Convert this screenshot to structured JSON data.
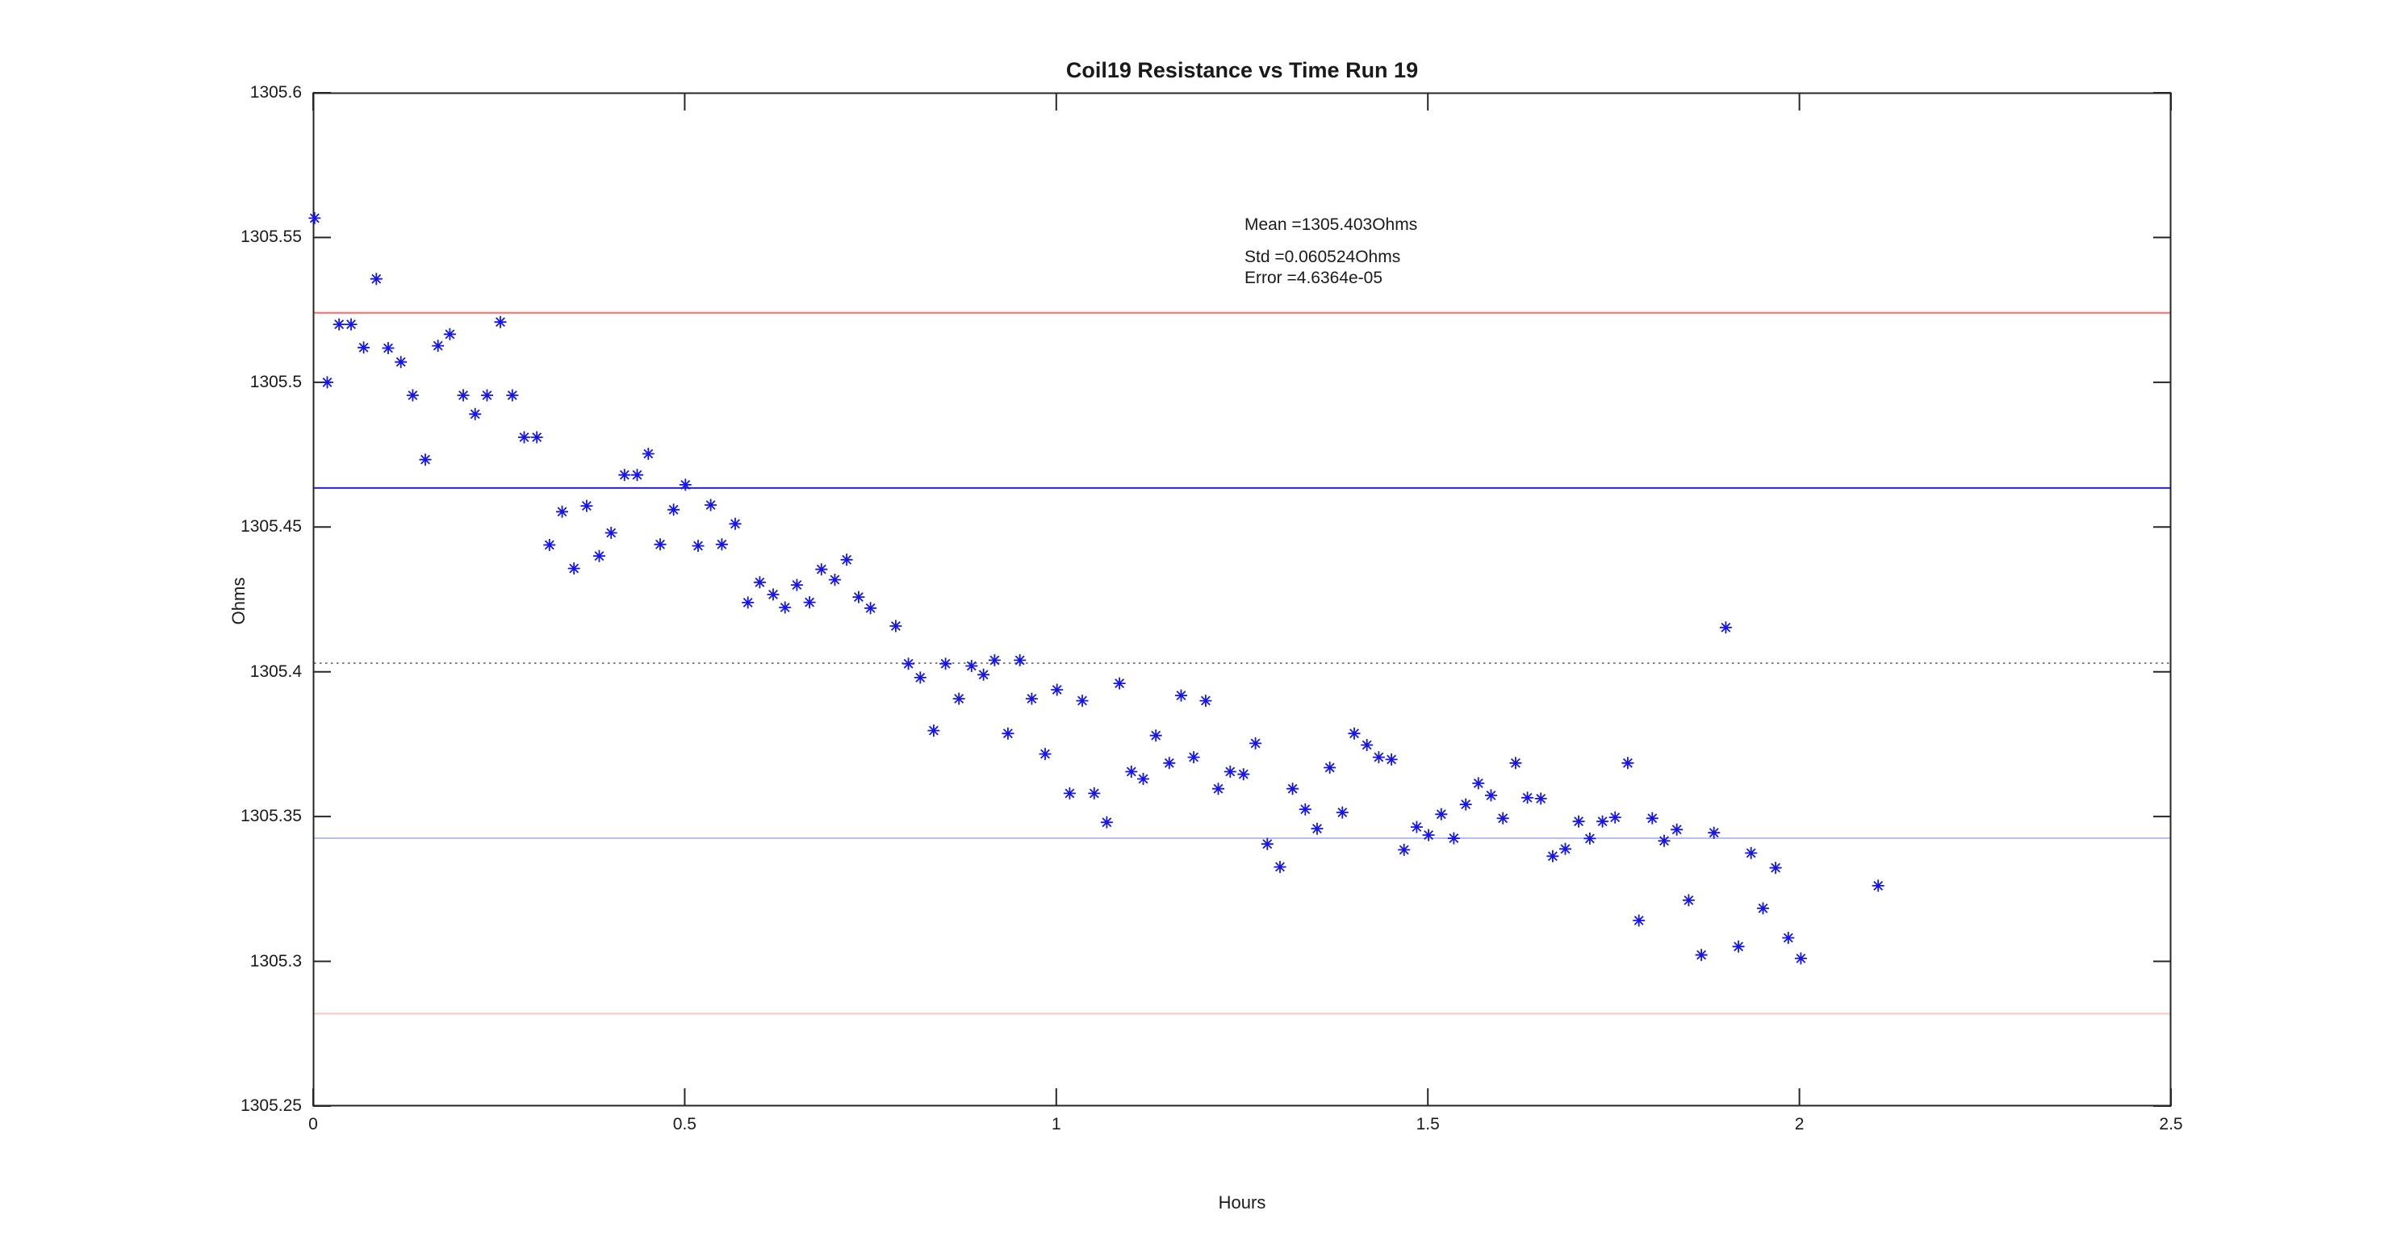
{
  "figure": {
    "background": "#ffffff",
    "axis_color": "#262626",
    "tick_length": 22
  },
  "chart_data": {
    "type": "scatter",
    "title": "Coil19 Resistance vs Time Run 19",
    "xlabel": "Hours",
    "ylabel": "Ohms",
    "xlim": [
      0,
      2.5
    ],
    "ylim": [
      1305.25,
      1305.6
    ],
    "grid": false,
    "legend": "none",
    "x_ticks": [
      0,
      0.5,
      1,
      1.5,
      2,
      2.5
    ],
    "x_tick_labels": [
      "0",
      "0.5",
      "1",
      "1.5",
      "2",
      "2.5"
    ],
    "y_ticks": [
      1305.25,
      1305.3,
      1305.35,
      1305.4,
      1305.45,
      1305.5,
      1305.55,
      1305.6
    ],
    "y_tick_labels": [
      "1305.25",
      "1305.3",
      "1305.35",
      "1305.4",
      "1305.45",
      "1305.5",
      "1305.55",
      "1305.6"
    ],
    "marker": {
      "shape": "asterisk",
      "color": "#1414f0",
      "size": 15
    },
    "stats": {
      "mean": 1305.403,
      "std": 0.060524,
      "error": 4.6364e-05
    },
    "annotation": {
      "mean": "Mean =1305.403Ohms",
      "std": "Std =0.060524Ohms",
      "error": "Error =4.6364e-05"
    },
    "reference_lines": [
      {
        "name": "mean_plus_2std",
        "value": 1305.524,
        "color": "#ff6a6a",
        "style": "solid"
      },
      {
        "name": "mean_plus_std",
        "value": 1305.4635,
        "color": "#2222dc",
        "style": "solid"
      },
      {
        "name": "mean",
        "value": 1305.403,
        "color": "#7f7f7f",
        "style": "dotted"
      },
      {
        "name": "mean_minus_std",
        "value": 1305.3425,
        "color": "#b6bdf2",
        "style": "solid"
      },
      {
        "name": "mean_minus_2std",
        "value": 1305.2819,
        "color": "#ffc2c2",
        "style": "solid"
      }
    ],
    "series": [
      {
        "name": "Coil19 resistance",
        "points": [
          [
            0.002,
            1305.5567
          ],
          [
            0.019,
            1305.5
          ],
          [
            0.035,
            1305.52
          ],
          [
            0.051,
            1305.52
          ],
          [
            0.068,
            1305.512
          ],
          [
            0.085,
            1305.5357
          ],
          [
            0.101,
            1305.5118
          ],
          [
            0.118,
            1305.507
          ],
          [
            0.134,
            1305.4955
          ],
          [
            0.151,
            1305.4733
          ],
          [
            0.168,
            1305.5126
          ],
          [
            0.184,
            1305.5166
          ],
          [
            0.202,
            1305.4955
          ],
          [
            0.218,
            1305.489
          ],
          [
            0.234,
            1305.4955
          ],
          [
            0.252,
            1305.5208
          ],
          [
            0.268,
            1305.4955
          ],
          [
            0.284,
            1305.481
          ],
          [
            0.301,
            1305.481
          ],
          [
            0.318,
            1305.4438
          ],
          [
            0.335,
            1305.4553
          ],
          [
            0.351,
            1305.4357
          ],
          [
            0.368,
            1305.4573
          ],
          [
            0.385,
            1305.44
          ],
          [
            0.401,
            1305.448
          ],
          [
            0.419,
            1305.468
          ],
          [
            0.436,
            1305.468
          ],
          [
            0.451,
            1305.4753
          ],
          [
            0.467,
            1305.444
          ],
          [
            0.485,
            1305.456
          ],
          [
            0.501,
            1305.4646
          ],
          [
            0.518,
            1305.4435
          ],
          [
            0.535,
            1305.4576
          ],
          [
            0.55,
            1305.444
          ],
          [
            0.568,
            1305.4511
          ],
          [
            0.585,
            1305.4239
          ],
          [
            0.601,
            1305.4309
          ],
          [
            0.619,
            1305.4267
          ],
          [
            0.635,
            1305.4222
          ],
          [
            0.651,
            1305.43
          ],
          [
            0.668,
            1305.424
          ],
          [
            0.684,
            1305.4354
          ],
          [
            0.702,
            1305.4318
          ],
          [
            0.718,
            1305.4387
          ],
          [
            0.734,
            1305.4258
          ],
          [
            0.75,
            1305.422
          ],
          [
            0.784,
            1305.4158
          ],
          [
            0.801,
            1305.4028
          ],
          [
            0.817,
            1305.398
          ],
          [
            0.835,
            1305.3797
          ],
          [
            0.851,
            1305.4028
          ],
          [
            0.869,
            1305.3907
          ],
          [
            0.886,
            1305.402
          ],
          [
            0.902,
            1305.399
          ],
          [
            0.917,
            1305.404
          ],
          [
            0.935,
            1305.3787
          ],
          [
            0.951,
            1305.404
          ],
          [
            0.967,
            1305.3907
          ],
          [
            0.985,
            1305.3716
          ],
          [
            1.001,
            1305.3938
          ],
          [
            1.018,
            1305.358
          ],
          [
            1.035,
            1305.39
          ],
          [
            1.051,
            1305.358
          ],
          [
            1.068,
            1305.348
          ],
          [
            1.085,
            1305.396
          ],
          [
            1.101,
            1305.3655
          ],
          [
            1.117,
            1305.363
          ],
          [
            1.134,
            1305.378
          ],
          [
            1.152,
            1305.3685
          ],
          [
            1.168,
            1305.3918
          ],
          [
            1.185,
            1305.3705
          ],
          [
            1.201,
            1305.39
          ],
          [
            1.218,
            1305.3596
          ],
          [
            1.234,
            1305.3655
          ],
          [
            1.252,
            1305.3646
          ],
          [
            1.268,
            1305.3753
          ],
          [
            1.284,
            1305.3405
          ],
          [
            1.301,
            1305.3326
          ],
          [
            1.318,
            1305.3596
          ],
          [
            1.335,
            1305.3525
          ],
          [
            1.351,
            1305.3458
          ],
          [
            1.368,
            1305.3669
          ],
          [
            1.385,
            1305.3514
          ],
          [
            1.401,
            1305.3787
          ],
          [
            1.418,
            1305.3747
          ],
          [
            1.434,
            1305.3705
          ],
          [
            1.451,
            1305.3697
          ],
          [
            1.468,
            1305.3385
          ],
          [
            1.485,
            1305.3464
          ],
          [
            1.501,
            1305.3436
          ],
          [
            1.518,
            1305.3508
          ],
          [
            1.535,
            1305.3425
          ],
          [
            1.551,
            1305.3542
          ],
          [
            1.568,
            1305.3615
          ],
          [
            1.585,
            1305.3573
          ],
          [
            1.601,
            1305.3494
          ],
          [
            1.618,
            1305.3685
          ],
          [
            1.634,
            1305.3565
          ],
          [
            1.652,
            1305.3562
          ],
          [
            1.668,
            1305.3363
          ],
          [
            1.685,
            1305.3388
          ],
          [
            1.703,
            1305.3483
          ],
          [
            1.718,
            1305.3424
          ],
          [
            1.735,
            1305.3483
          ],
          [
            1.752,
            1305.3497
          ],
          [
            1.769,
            1305.3685
          ],
          [
            1.784,
            1305.3141
          ],
          [
            1.802,
            1305.3494
          ],
          [
            1.818,
            1305.3416
          ],
          [
            1.835,
            1305.3455
          ],
          [
            1.851,
            1305.3211
          ],
          [
            1.868,
            1305.3022
          ],
          [
            1.885,
            1305.3444
          ],
          [
            1.901,
            1305.4153
          ],
          [
            1.918,
            1305.3051
          ],
          [
            1.935,
            1305.3374
          ],
          [
            1.951,
            1305.3183
          ],
          [
            1.968,
            1305.3323
          ],
          [
            1.985,
            1305.3081
          ],
          [
            2.002,
            1305.301
          ],
          [
            2.106,
            1305.3261
          ]
        ]
      }
    ]
  }
}
